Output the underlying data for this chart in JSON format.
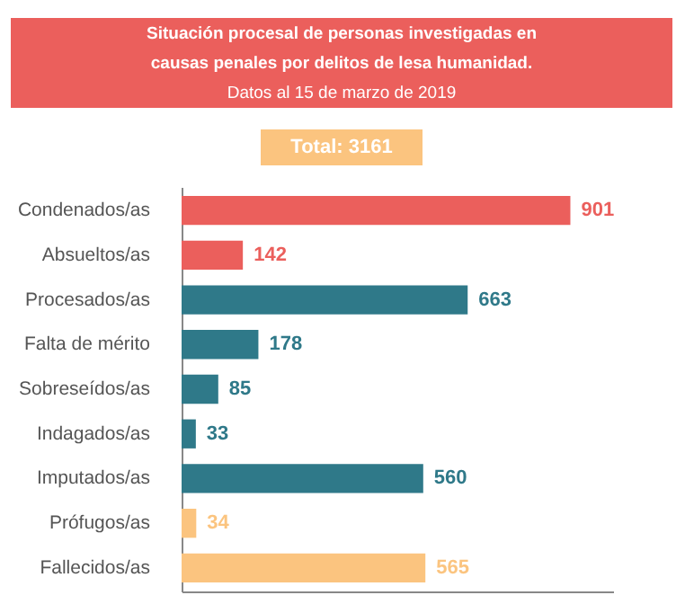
{
  "chart_data": {
    "type": "bar",
    "orientation": "horizontal",
    "title": "Situación procesal de personas investigadas en causas penales por delitos de lesa humanidad.",
    "subtitle": "Datos al 15 de marzo de 2019",
    "annotations": [
      "Total: 3161"
    ],
    "categories": [
      "Condenados/as",
      "Absueltos/as",
      "Procesados/as",
      "Falta de mérito",
      "Sobreseídos/as",
      "Indagados/as",
      "Imputados/as",
      "Prófugos/as",
      "Fallecidos/as"
    ],
    "values": [
      901,
      142,
      663,
      178,
      85,
      33,
      560,
      34,
      565
    ],
    "colors": [
      "#eb5f5c",
      "#eb5f5c",
      "#2f7989",
      "#2f7989",
      "#2f7989",
      "#2f7989",
      "#2f7989",
      "#fbc47f",
      "#fbc47f"
    ],
    "xlim": [
      0,
      1000
    ],
    "data_labels": true
  }
}
